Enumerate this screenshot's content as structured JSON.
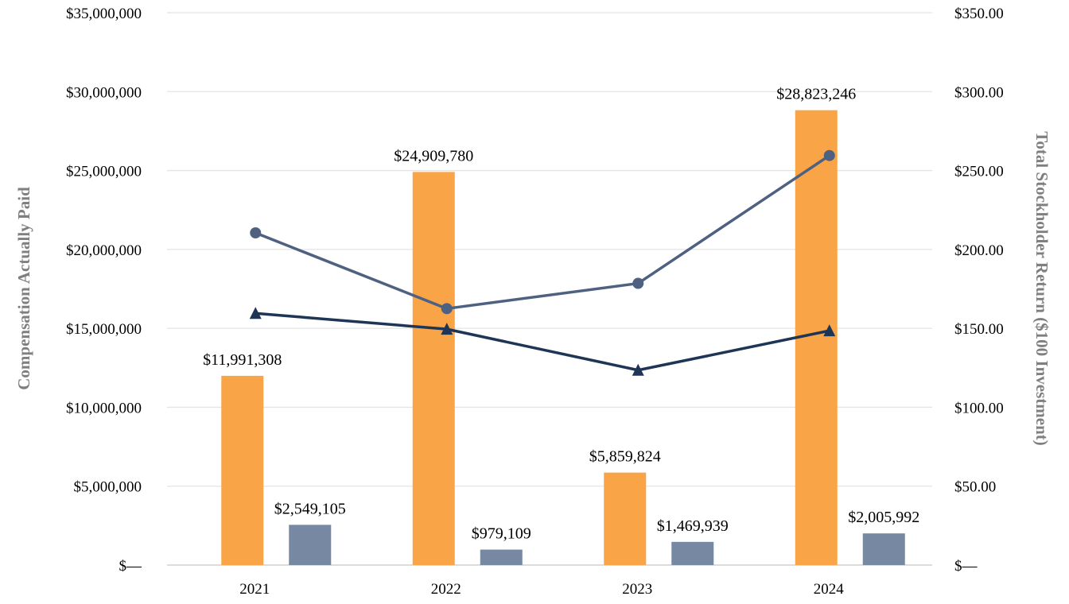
{
  "chart_data": {
    "type": "bar",
    "categories": [
      "2021",
      "2022",
      "2023",
      "2024"
    ],
    "series": [
      {
        "kind": "bar",
        "axis": "left",
        "color": "#f9a547",
        "values": [
          11991308,
          24909780,
          5859824,
          28823246
        ],
        "labels": [
          "$11,991,308",
          "$24,909,780",
          "$5,859,824",
          "$28,823,246"
        ]
      },
      {
        "kind": "bar",
        "axis": "left",
        "color": "#7788a2",
        "values": [
          2549105,
          979109,
          1469939,
          2005992
        ],
        "labels": [
          "$2,549,105",
          "$979,109",
          "$1,469,939",
          "$2,005,992"
        ]
      },
      {
        "kind": "line",
        "axis": "right",
        "marker": "circle",
        "color": "#4f6180",
        "values": [
          210.5,
          162.5,
          178.5,
          259.5
        ]
      },
      {
        "kind": "line",
        "axis": "right",
        "marker": "triangle",
        "color": "#1f3556",
        "values": [
          159.5,
          149.5,
          123.5,
          148.5
        ]
      }
    ],
    "ylabel": "Compensation Actually Paid",
    "y2label": "Total Stockholder Return ($100 Investment)",
    "ylim": [
      0,
      35000000
    ],
    "y2lim": [
      0,
      350
    ],
    "yticks": [
      "$—",
      "$5,000,000",
      "$10,000,000",
      "$15,000,000",
      "$20,000,000",
      "$25,000,000",
      "$30,000,000",
      "$35,000,000"
    ],
    "y2ticks": [
      "$—",
      "$50.00",
      "$100.00",
      "$150.00",
      "$200.00",
      "$250.00",
      "$300.00",
      "$350.00"
    ],
    "grid": true,
    "gridColor": "#e4e4e4",
    "baselineColor": "#d0d0d0"
  }
}
